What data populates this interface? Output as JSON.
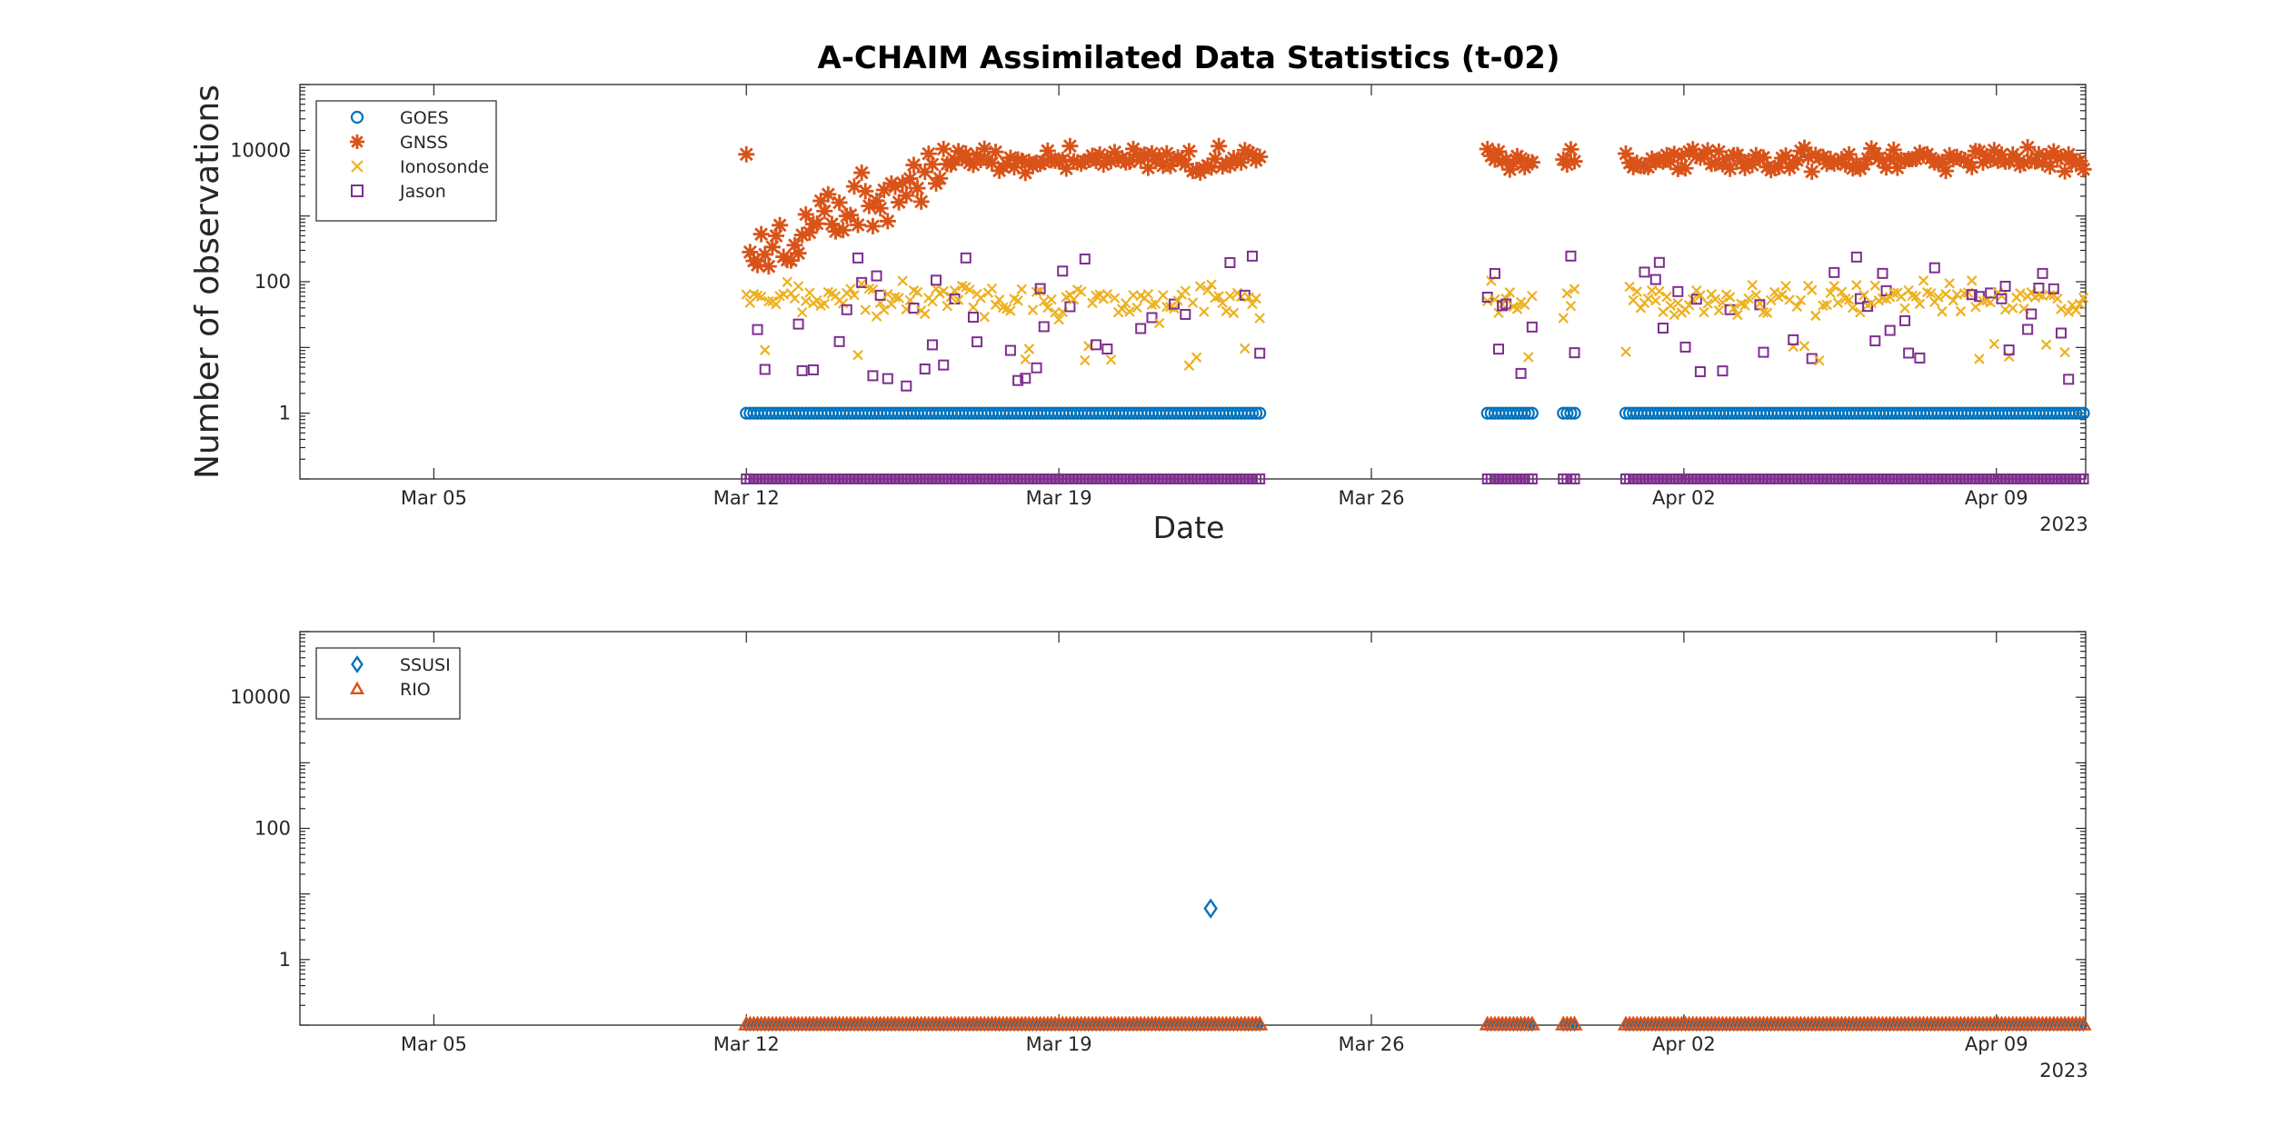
{
  "chart_data": [
    {
      "type": "scatter",
      "title": "A-CHAIM Assimilated Data Statistics (t-02)",
      "xlabel": "Date",
      "ylabel": "Number of observations",
      "y_scale": "log",
      "ylim": [
        0.1,
        100000
      ],
      "xlim": [
        "2023-03-02",
        "2023-04-11"
      ],
      "x_ticks": [
        "Mar 05",
        "Mar 12",
        "Mar 19",
        "Mar 26",
        "Apr 02",
        "Apr 09"
      ],
      "x_year_label": "2023",
      "y_ticks": [
        "1",
        "100",
        "10000"
      ],
      "legend_location": "top-left",
      "grid": false,
      "data_periods": [
        [
          "2023-03-12",
          "2023-03-23.5"
        ],
        [
          "2023-03-28.6",
          "2023-03-29.6"
        ],
        [
          "2023-03-30.3",
          "2023-03-30.6"
        ],
        [
          "2023-03-31.7",
          "2023-04-11"
        ]
      ],
      "series": [
        {
          "name": "GOES",
          "marker": "circle",
          "color": "#0072BD",
          "typical_value": 1,
          "zero_value_ticks": false
        },
        {
          "name": "GNSS",
          "marker": "asterisk",
          "color": "#D95319",
          "typical_value": 10000,
          "range": [
            1000,
            15000
          ]
        },
        {
          "name": "Ionosonde",
          "marker": "x",
          "color": "#EDB120",
          "typical_value": 60,
          "range": [
            5,
            150
          ]
        },
        {
          "name": "Jason",
          "marker": "square",
          "color": "#7E2F8E",
          "range": [
            2,
            300
          ],
          "zero_value_ticks": true
        }
      ]
    },
    {
      "type": "scatter",
      "title": "",
      "xlabel": "",
      "ylabel": "",
      "y_scale": "log",
      "ylim": [
        0.1,
        100000
      ],
      "xlim": [
        "2023-03-02",
        "2023-04-11"
      ],
      "x_ticks": [
        "Mar 05",
        "Mar 12",
        "Mar 19",
        "Mar 26",
        "Apr 02",
        "Apr 09"
      ],
      "x_year_label": "2023",
      "y_ticks": [
        "1",
        "100",
        "10000"
      ],
      "legend_location": "top-left",
      "grid": false,
      "series": [
        {
          "name": "SSUSI",
          "marker": "diamond",
          "color": "#0072BD",
          "points": [
            {
              "x": "2023-03-22.4",
              "y": 6
            }
          ]
        },
        {
          "name": "RIO",
          "marker": "triangle",
          "color": "#D95319",
          "zero_value_ticks": true
        }
      ]
    }
  ]
}
